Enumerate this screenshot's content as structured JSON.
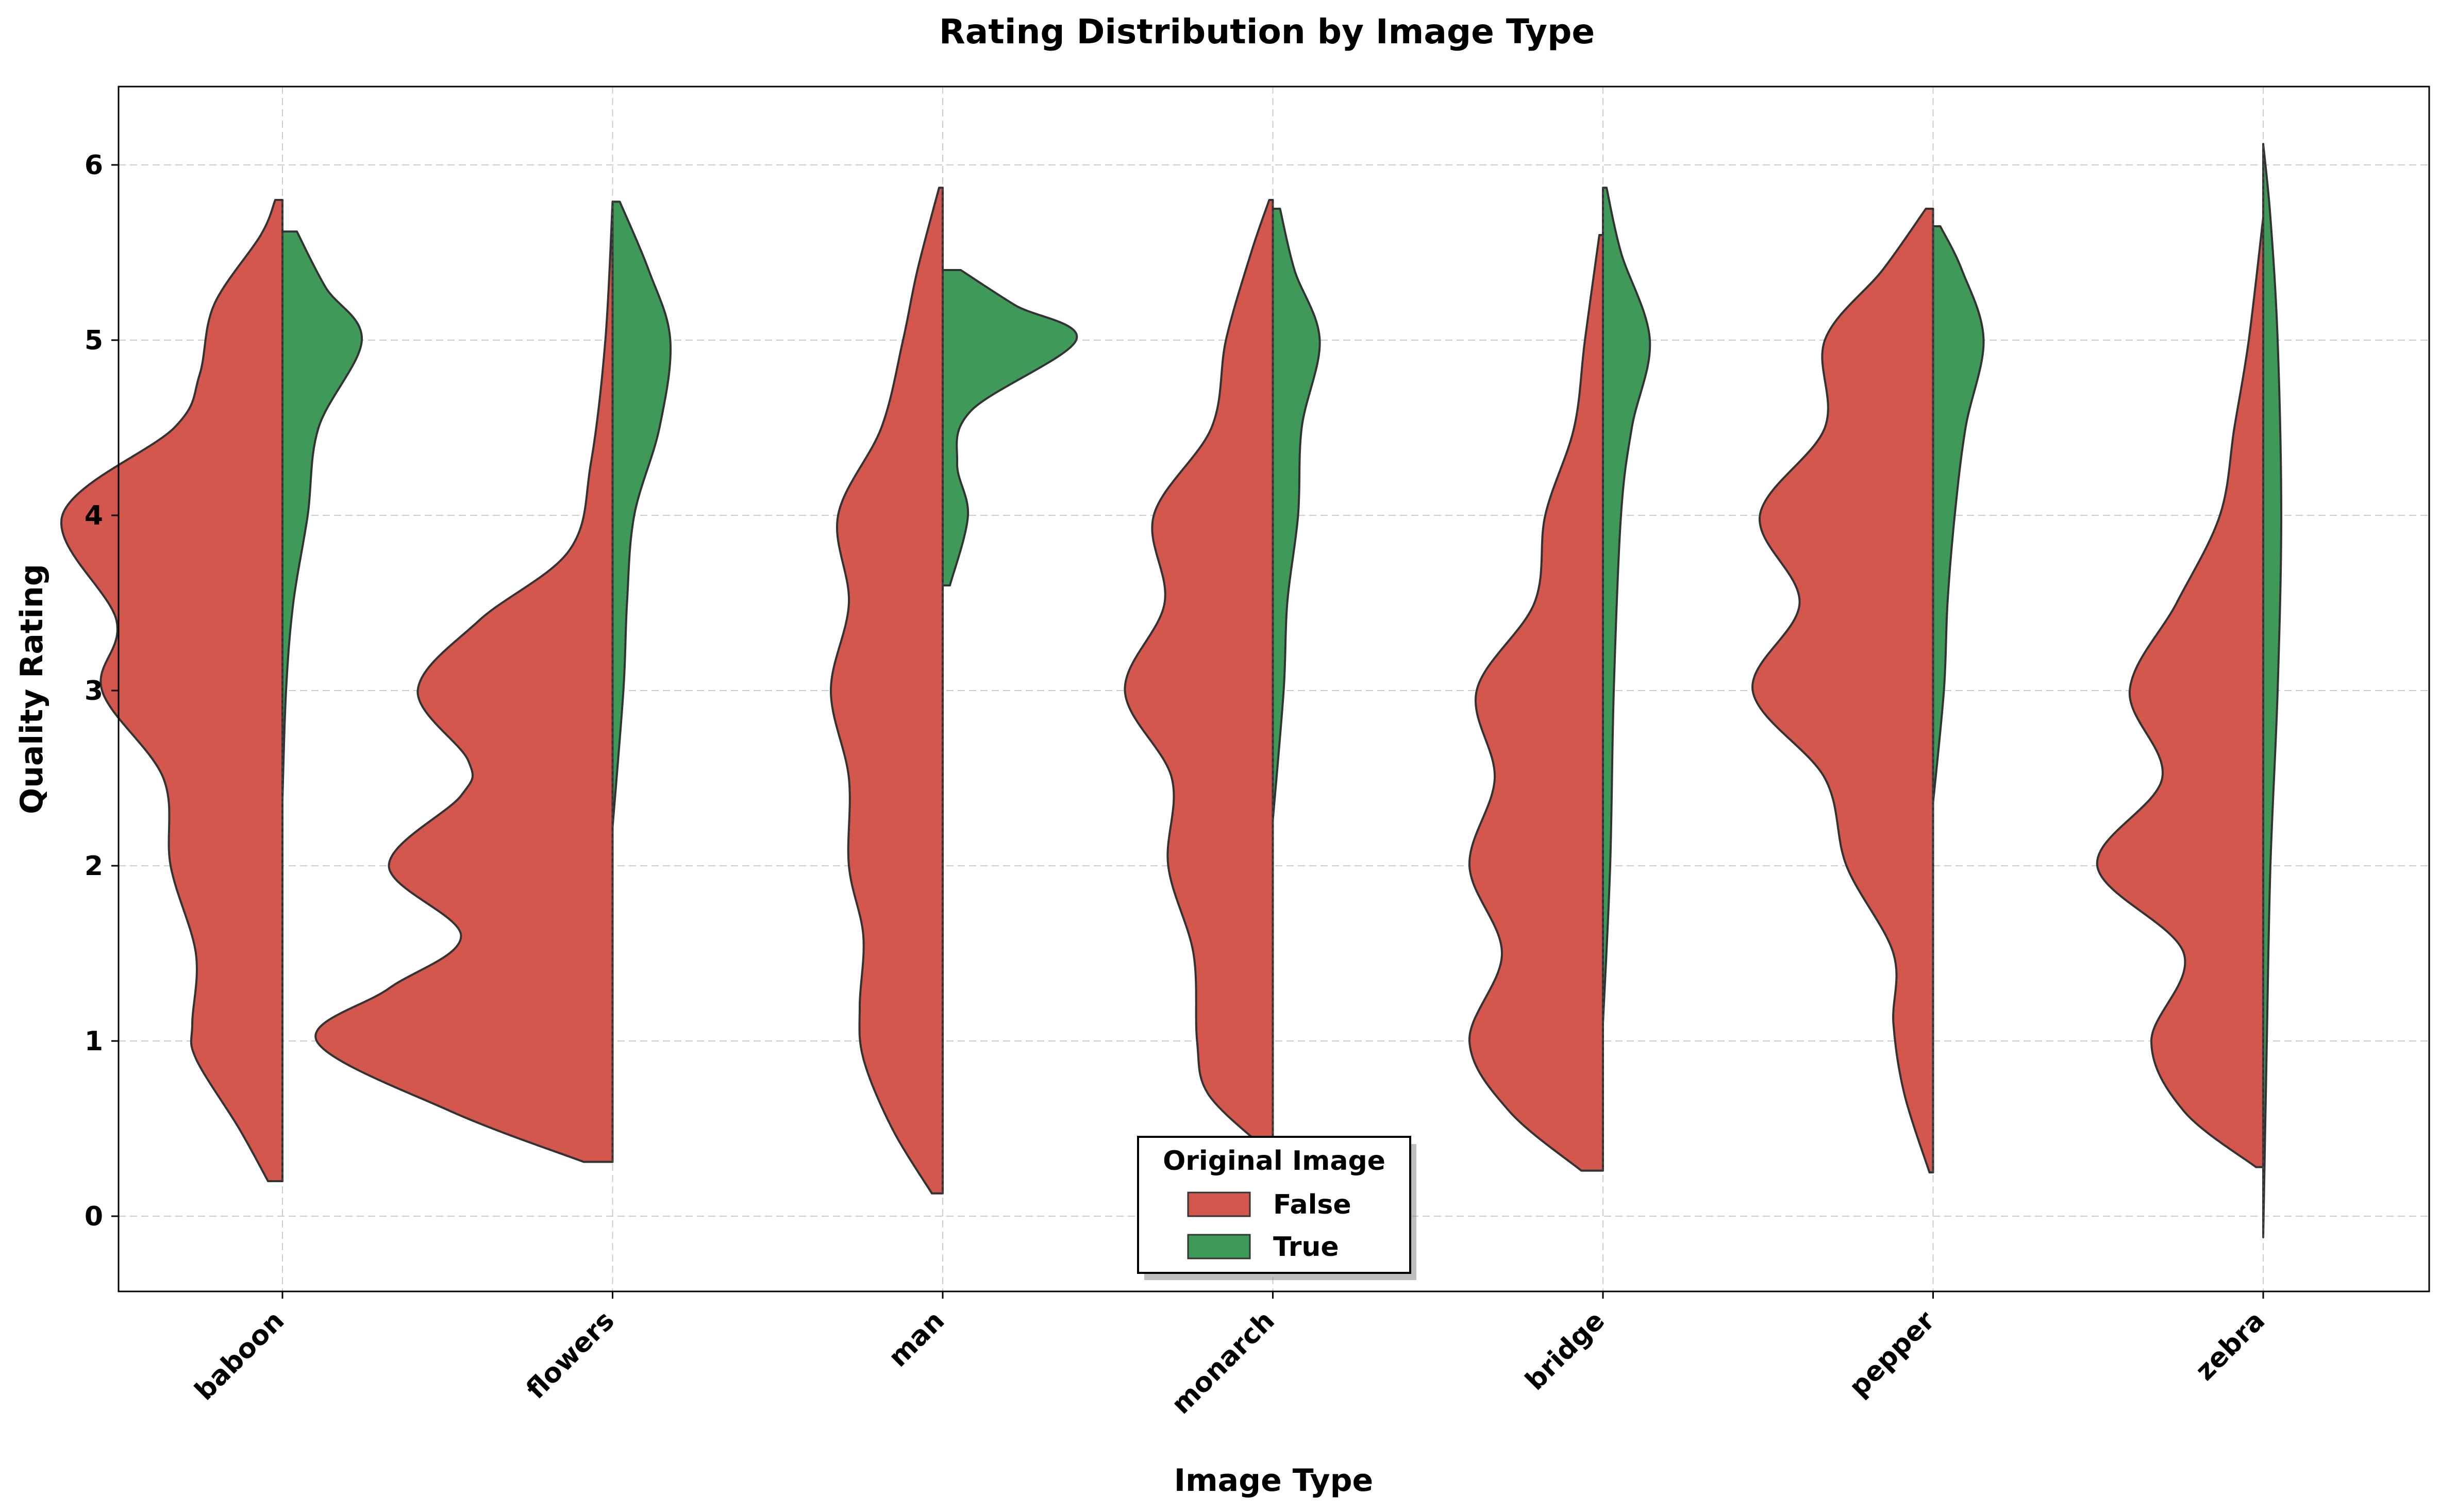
{
  "chart_data": {
    "type": "violin",
    "title": "Rating Distribution by Image Type",
    "xlabel": "Image Type",
    "ylabel": "Quality Rating",
    "categories": [
      "baboon",
      "flowers",
      "man",
      "monarch",
      "bridge",
      "pepper",
      "zebra"
    ],
    "yticks": [
      "0",
      "1",
      "2",
      "3",
      "4",
      "5",
      "6"
    ],
    "ylim": [
      -0.45,
      6.4
    ],
    "grid": true,
    "legend": {
      "title": "Original Image",
      "placement": "bottom-center",
      "entries": [
        "False",
        "True"
      ]
    },
    "colors": {
      "False": "#d4574d",
      "True": "#3f9a5a"
    },
    "series": [
      {
        "name": "False",
        "side": "left",
        "violins": [
          [
            [
              0.2,
              0.04
            ],
            [
              0.5,
              0.12
            ],
            [
              0.9,
              0.24
            ],
            [
              1.1,
              0.25
            ],
            [
              1.5,
              0.24
            ],
            [
              2.0,
              0.31
            ],
            [
              2.5,
              0.33
            ],
            [
              3.0,
              0.5
            ],
            [
              3.4,
              0.46
            ],
            [
              4.0,
              0.61
            ],
            [
              4.5,
              0.3
            ],
            [
              4.8,
              0.23
            ],
            [
              5.2,
              0.19
            ],
            [
              5.6,
              0.06
            ],
            [
              5.8,
              0.02
            ]
          ],
          [
            [
              0.31,
              0.08
            ],
            [
              0.6,
              0.45
            ],
            [
              1.0,
              0.82
            ],
            [
              1.3,
              0.62
            ],
            [
              1.6,
              0.42
            ],
            [
              2.0,
              0.62
            ],
            [
              2.4,
              0.42
            ],
            [
              2.6,
              0.4
            ],
            [
              3.0,
              0.54
            ],
            [
              3.4,
              0.37
            ],
            [
              3.8,
              0.12
            ],
            [
              4.3,
              0.06
            ],
            [
              5.0,
              0.02
            ],
            [
              5.79,
              0.0
            ]
          ],
          [
            [
              0.13,
              0.03
            ],
            [
              0.5,
              0.14
            ],
            [
              0.9,
              0.22
            ],
            [
              1.2,
              0.23
            ],
            [
              1.6,
              0.22
            ],
            [
              2.0,
              0.26
            ],
            [
              2.5,
              0.26
            ],
            [
              3.0,
              0.31
            ],
            [
              3.5,
              0.26
            ],
            [
              4.0,
              0.29
            ],
            [
              4.5,
              0.17
            ],
            [
              5.0,
              0.11
            ],
            [
              5.4,
              0.07
            ],
            [
              5.87,
              0.01
            ]
          ],
          [
            [
              0.4,
              0.03
            ],
            [
              0.7,
              0.18
            ],
            [
              1.0,
              0.21
            ],
            [
              1.5,
              0.22
            ],
            [
              2.0,
              0.29
            ],
            [
              2.5,
              0.28
            ],
            [
              3.0,
              0.41
            ],
            [
              3.5,
              0.3
            ],
            [
              4.0,
              0.33
            ],
            [
              4.5,
              0.17
            ],
            [
              5.0,
              0.13
            ],
            [
              5.5,
              0.06
            ],
            [
              5.8,
              0.01
            ]
          ],
          [
            [
              0.26,
              0.06
            ],
            [
              0.6,
              0.26
            ],
            [
              1.0,
              0.37
            ],
            [
              1.5,
              0.28
            ],
            [
              2.0,
              0.37
            ],
            [
              2.5,
              0.3
            ],
            [
              3.0,
              0.35
            ],
            [
              3.5,
              0.19
            ],
            [
              4.0,
              0.16
            ],
            [
              4.5,
              0.08
            ],
            [
              5.0,
              0.05
            ],
            [
              5.6,
              0.01
            ]
          ],
          [
            [
              0.25,
              0.01
            ],
            [
              0.7,
              0.08
            ],
            [
              1.1,
              0.11
            ],
            [
              1.5,
              0.11
            ],
            [
              2.0,
              0.24
            ],
            [
              2.5,
              0.3
            ],
            [
              3.0,
              0.5
            ],
            [
              3.5,
              0.37
            ],
            [
              4.0,
              0.48
            ],
            [
              4.5,
              0.3
            ],
            [
              5.0,
              0.3
            ],
            [
              5.4,
              0.14
            ],
            [
              5.75,
              0.02
            ]
          ],
          [
            [
              0.28,
              0.02
            ],
            [
              0.6,
              0.22
            ],
            [
              1.0,
              0.31
            ],
            [
              1.5,
              0.22
            ],
            [
              2.0,
              0.46
            ],
            [
              2.5,
              0.28
            ],
            [
              3.0,
              0.37
            ],
            [
              3.5,
              0.24
            ],
            [
              4.0,
              0.12
            ],
            [
              4.5,
              0.08
            ],
            [
              5.0,
              0.04
            ],
            [
              5.7,
              0.0
            ]
          ]
        ]
      },
      {
        "name": "True",
        "side": "right",
        "violins": [
          [
            [
              2.38,
              0.0
            ],
            [
              3.0,
              0.01
            ],
            [
              3.5,
              0.03
            ],
            [
              4.0,
              0.07
            ],
            [
              4.5,
              0.1
            ],
            [
              5.0,
              0.22
            ],
            [
              5.3,
              0.12
            ],
            [
              5.62,
              0.04
            ]
          ],
          [
            [
              2.22,
              0.0
            ],
            [
              3.0,
              0.03
            ],
            [
              3.5,
              0.04
            ],
            [
              4.0,
              0.06
            ],
            [
              4.5,
              0.13
            ],
            [
              5.0,
              0.16
            ],
            [
              5.4,
              0.1
            ],
            [
              5.79,
              0.02
            ]
          ],
          [
            [
              3.6,
              0.02
            ],
            [
              4.0,
              0.07
            ],
            [
              4.3,
              0.04
            ],
            [
              4.6,
              0.08
            ],
            [
              5.0,
              0.37
            ],
            [
              5.2,
              0.2
            ],
            [
              5.4,
              0.05
            ]
          ],
          [
            [
              2.26,
              0.0
            ],
            [
              3.0,
              0.03
            ],
            [
              3.5,
              0.04
            ],
            [
              4.0,
              0.07
            ],
            [
              4.5,
              0.08
            ],
            [
              5.0,
              0.13
            ],
            [
              5.4,
              0.06
            ],
            [
              5.75,
              0.02
            ]
          ],
          [
            [
              1.1,
              0.0
            ],
            [
              2.0,
              0.02
            ],
            [
              3.0,
              0.03
            ],
            [
              4.0,
              0.05
            ],
            [
              4.5,
              0.08
            ],
            [
              5.0,
              0.13
            ],
            [
              5.5,
              0.05
            ],
            [
              5.87,
              0.01
            ]
          ],
          [
            [
              2.36,
              0.0
            ],
            [
              3.0,
              0.03
            ],
            [
              3.5,
              0.04
            ],
            [
              4.0,
              0.06
            ],
            [
              4.5,
              0.09
            ],
            [
              5.0,
              0.14
            ],
            [
              5.4,
              0.08
            ],
            [
              5.65,
              0.02
            ]
          ],
          [
            [
              -0.12,
              0.0
            ],
            [
              1.0,
              0.01
            ],
            [
              2.0,
              0.02
            ],
            [
              3.0,
              0.04
            ],
            [
              4.0,
              0.05
            ],
            [
              5.0,
              0.04
            ],
            [
              5.7,
              0.02
            ],
            [
              6.12,
              0.0
            ]
          ]
        ]
      }
    ]
  }
}
